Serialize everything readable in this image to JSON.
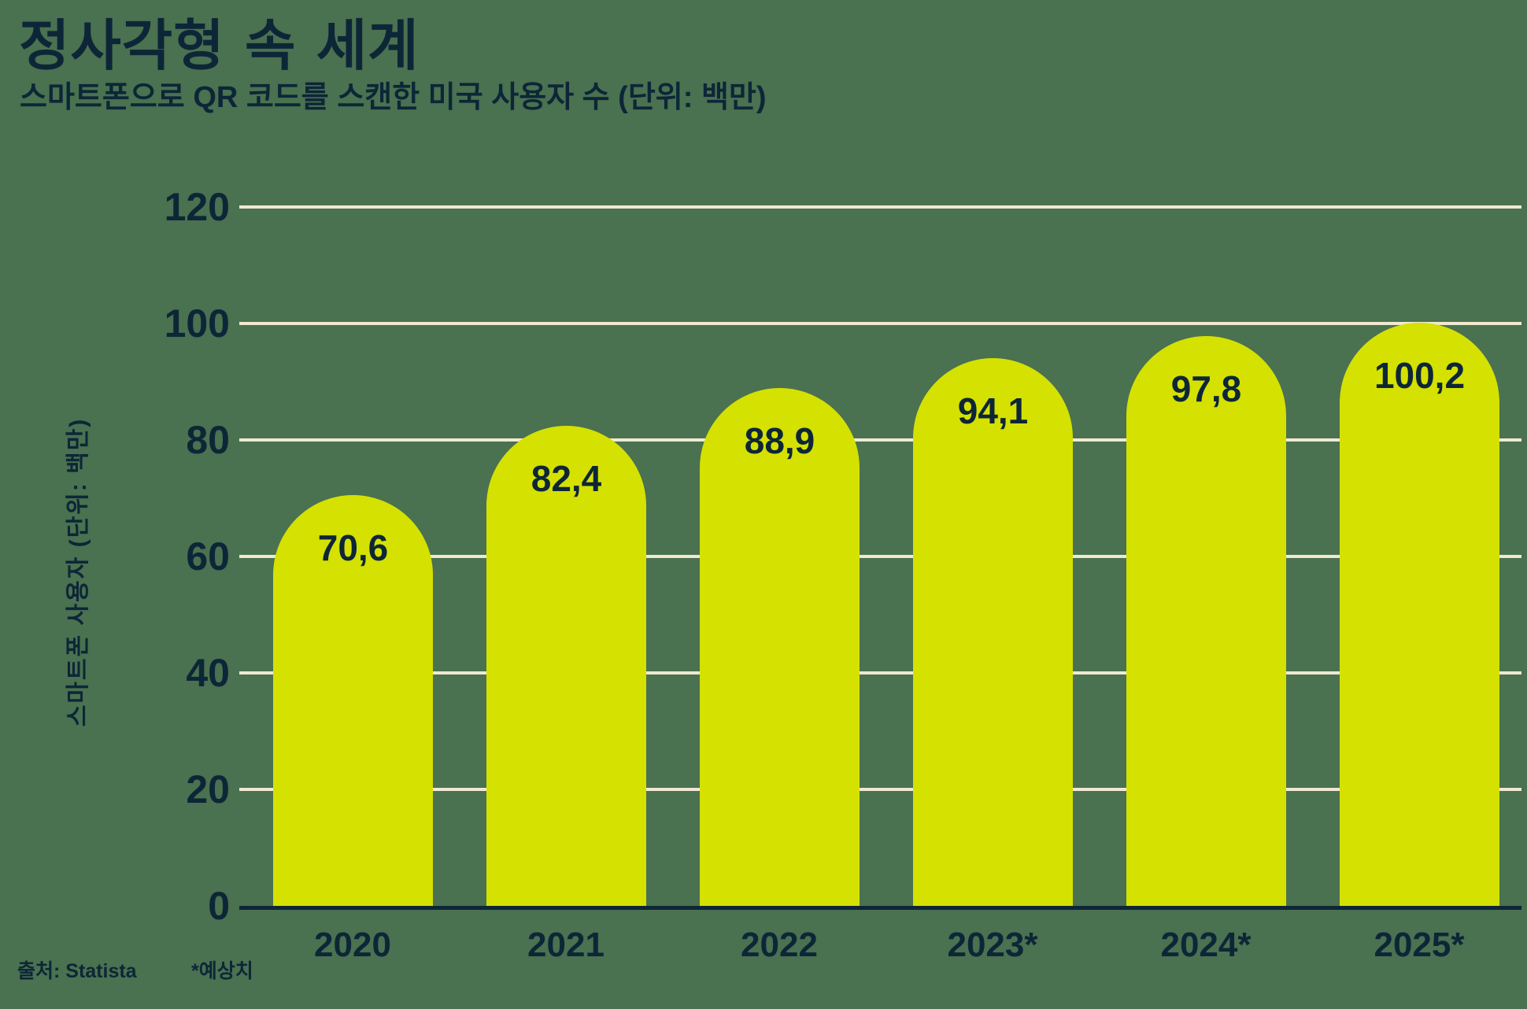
{
  "title": "정사각형 속 세계",
  "subtitle": "스마트폰으로 QR 코드를 스캔한 미국 사용자 수 (단위: 백만)",
  "y_axis_label": "스마트폰 사용자 (단위: 백만)",
  "source_label": "출처: Statista",
  "footnote": "*예상치",
  "colors": {
    "background": "#4A7150",
    "bar": "#D5E100",
    "text": "#0D2637",
    "gridline": "#EFE9D0",
    "axis": "#0D2637"
  },
  "chart_data": {
    "type": "bar",
    "title": "정사각형 속 세계",
    "subtitle": "스마트폰으로 QR 코드를 스캔한 미국 사용자 수 (단위: 백만)",
    "categories": [
      "2020",
      "2021",
      "2022",
      "2023*",
      "2024*",
      "2025*"
    ],
    "values": [
      70.6,
      82.4,
      88.9,
      94.1,
      97.8,
      100.2
    ],
    "value_labels": [
      "70,6",
      "82,4",
      "88,9",
      "94,1",
      "97,8",
      "100,2"
    ],
    "xlabel": "",
    "ylabel": "스마트폰 사용자 (단위: 백만)",
    "ylim": [
      0,
      120
    ],
    "yticks": [
      0,
      20,
      40,
      60,
      80,
      100,
      120
    ],
    "grid": true,
    "legend": "none",
    "bar_color": "#D5E100",
    "bar_cap": "rounded-top",
    "source": "출처: Statista",
    "footnote": "*예상치"
  }
}
